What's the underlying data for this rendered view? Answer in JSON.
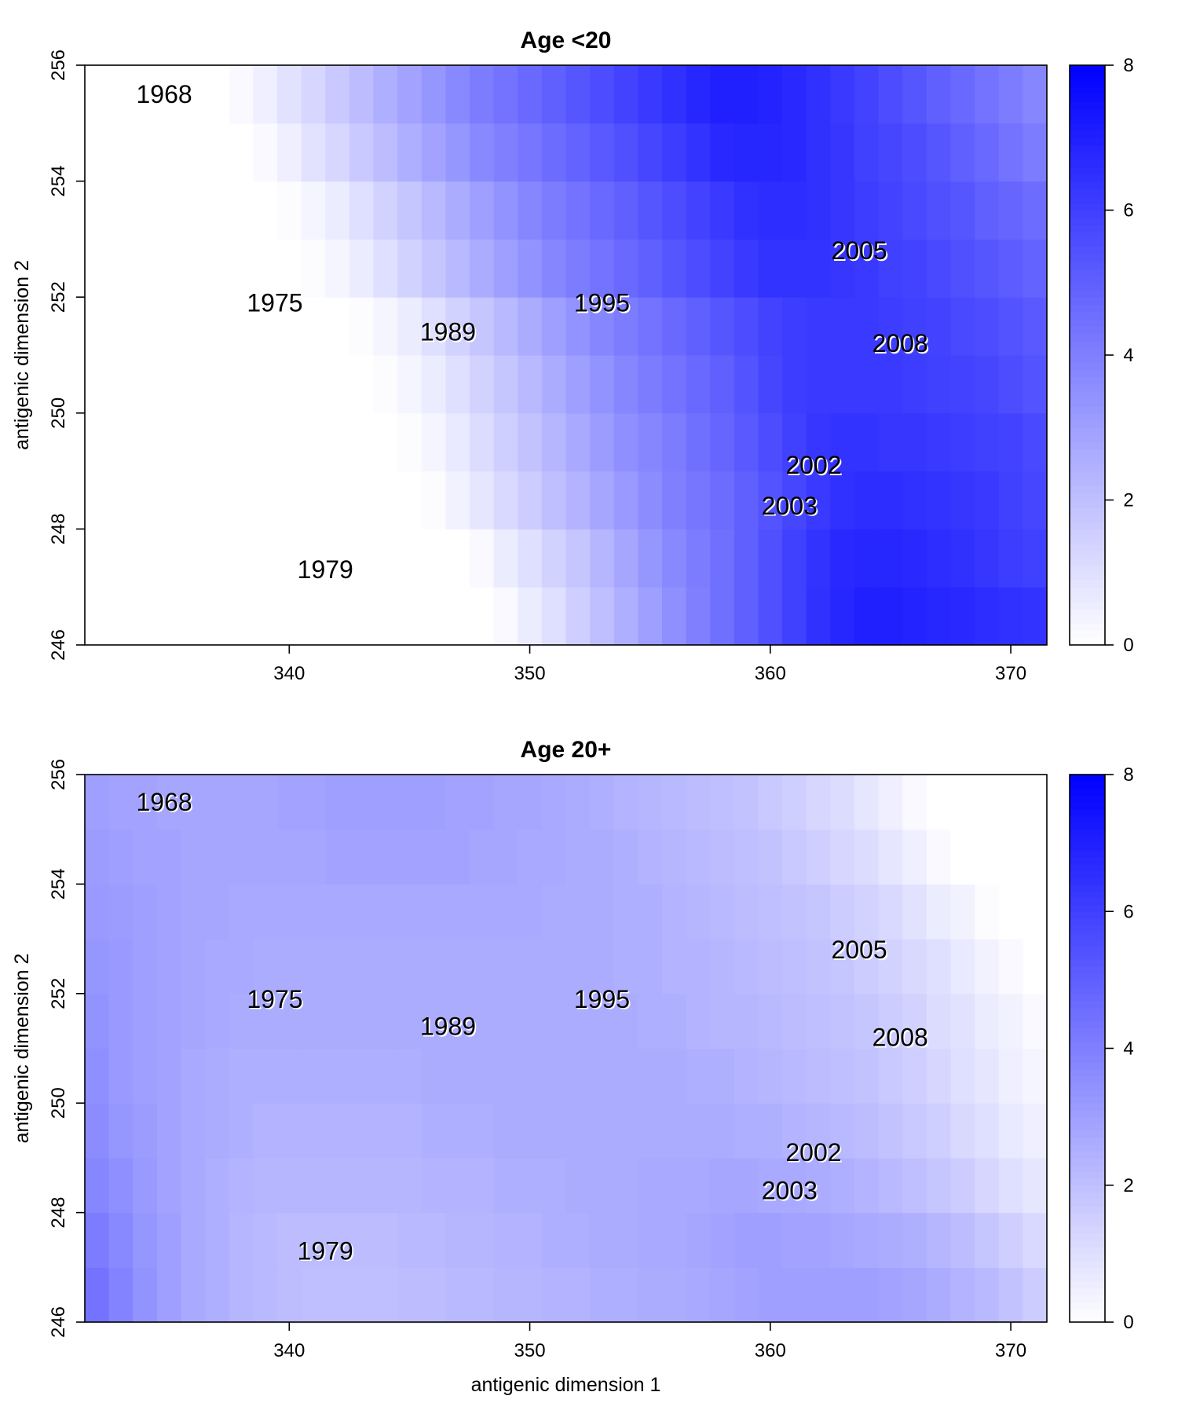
{
  "chart_data": [
    {
      "type": "heatmap",
      "title": "Age <20",
      "xlabel": "",
      "ylabel": "antigenic dimension 2",
      "xlim": [
        331.5,
        371.5
      ],
      "ylim": [
        246,
        256
      ],
      "x_ticks": [
        340,
        350,
        360,
        370
      ],
      "y_ticks": [
        246,
        248,
        250,
        252,
        254,
        256
      ],
      "grid": false,
      "colorbar": {
        "min": 0,
        "max": 8,
        "ticks": [
          0,
          2,
          4,
          6,
          8
        ],
        "low_color": "#ffffff",
        "high_color": "#0000ff"
      },
      "x_centers": [
        332,
        333,
        334,
        335,
        336,
        337,
        338,
        339,
        340,
        341,
        342,
        343,
        344,
        345,
        346,
        347,
        348,
        349,
        350,
        351,
        352,
        353,
        354,
        355,
        356,
        357,
        358,
        359,
        360,
        361,
        362,
        363,
        364,
        365,
        366,
        367,
        368,
        369,
        370,
        371
      ],
      "y_centers": [
        246.5,
        247.5,
        248.5,
        249.5,
        250.5,
        251.5,
        252.5,
        253.5,
        254.5,
        255.5
      ],
      "values": [
        [
          0,
          0,
          0,
          0,
          0,
          0,
          0,
          0,
          0,
          0,
          0,
          0,
          0,
          0,
          0,
          0,
          0,
          0.2,
          0.6,
          1.0,
          1.5,
          2.0,
          2.5,
          3.0,
          3.5,
          4.0,
          4.5,
          5.0,
          5.5,
          6.0,
          6.5,
          6.8,
          7.0,
          7.0,
          6.9,
          6.8,
          6.7,
          6.6,
          6.5,
          6.4
        ],
        [
          0,
          0,
          0,
          0,
          0,
          0,
          0,
          0,
          0,
          0,
          0,
          0,
          0,
          0,
          0,
          0,
          0.2,
          0.6,
          1.0,
          1.4,
          1.8,
          2.3,
          2.8,
          3.3,
          3.7,
          4.1,
          4.5,
          5.0,
          5.5,
          6.0,
          6.4,
          6.7,
          6.8,
          6.8,
          6.7,
          6.6,
          6.5,
          6.3,
          6.1,
          6.0
        ],
        [
          0,
          0,
          0,
          0,
          0,
          0,
          0,
          0,
          0,
          0,
          0,
          0,
          0,
          0,
          0.1,
          0.4,
          0.8,
          1.2,
          1.6,
          2.0,
          2.4,
          2.8,
          3.2,
          3.6,
          4.0,
          4.3,
          4.6,
          5.0,
          5.4,
          5.8,
          6.2,
          6.5,
          6.6,
          6.6,
          6.5,
          6.4,
          6.3,
          6.2,
          6.0,
          5.8
        ],
        [
          0,
          0,
          0,
          0,
          0,
          0,
          0,
          0,
          0,
          0,
          0,
          0,
          0,
          0.1,
          0.3,
          0.7,
          1.1,
          1.5,
          1.9,
          2.3,
          2.7,
          3.1,
          3.5,
          3.8,
          4.1,
          4.5,
          4.8,
          5.2,
          5.6,
          6.0,
          6.3,
          6.4,
          6.4,
          6.3,
          6.3,
          6.2,
          6.1,
          6.0,
          5.9,
          5.7
        ],
        [
          0,
          0,
          0,
          0,
          0,
          0,
          0,
          0,
          0,
          0,
          0,
          0,
          0.1,
          0.3,
          0.6,
          1.0,
          1.4,
          1.8,
          2.2,
          2.6,
          3.0,
          3.4,
          3.8,
          4.1,
          4.4,
          4.7,
          5.0,
          5.4,
          5.8,
          6.1,
          6.2,
          6.2,
          6.2,
          6.2,
          6.1,
          6.0,
          5.9,
          5.8,
          5.6,
          5.4
        ],
        [
          0,
          0,
          0,
          0,
          0,
          0,
          0,
          0,
          0,
          0,
          0,
          0.1,
          0.3,
          0.6,
          1.0,
          1.4,
          1.8,
          2.2,
          2.6,
          3.0,
          3.4,
          3.8,
          4.1,
          4.4,
          4.7,
          5.0,
          5.3,
          5.6,
          5.9,
          6.1,
          6.2,
          6.2,
          6.2,
          6.1,
          6.0,
          5.9,
          5.7,
          5.6,
          5.4,
          5.2
        ],
        [
          0,
          0,
          0,
          0,
          0,
          0,
          0,
          0,
          0,
          0.1,
          0.3,
          0.6,
          1.0,
          1.4,
          1.8,
          2.2,
          2.6,
          3.0,
          3.4,
          3.8,
          4.1,
          4.4,
          4.7,
          5.0,
          5.3,
          5.6,
          5.9,
          6.2,
          6.4,
          6.4,
          6.4,
          6.3,
          6.2,
          6.0,
          5.9,
          5.7,
          5.5,
          5.3,
          5.1,
          4.9
        ],
        [
          0,
          0,
          0,
          0,
          0,
          0,
          0,
          0,
          0.1,
          0.3,
          0.6,
          1.0,
          1.4,
          1.8,
          2.2,
          2.6,
          3.0,
          3.4,
          3.8,
          4.1,
          4.4,
          4.7,
          5.0,
          5.3,
          5.6,
          5.9,
          6.2,
          6.5,
          6.6,
          6.6,
          6.5,
          6.3,
          6.1,
          5.9,
          5.7,
          5.5,
          5.3,
          5.0,
          4.8,
          4.6
        ],
        [
          0,
          0,
          0,
          0,
          0,
          0,
          0,
          0.2,
          0.5,
          0.9,
          1.3,
          1.7,
          2.1,
          2.5,
          2.9,
          3.3,
          3.7,
          4.0,
          4.3,
          4.6,
          4.9,
          5.2,
          5.5,
          5.8,
          6.1,
          6.4,
          6.7,
          6.8,
          6.8,
          6.7,
          6.5,
          6.3,
          6.0,
          5.8,
          5.6,
          5.3,
          5.0,
          4.7,
          4.4,
          4.1
        ],
        [
          0,
          0,
          0,
          0,
          0,
          0,
          0.2,
          0.5,
          0.9,
          1.3,
          1.7,
          2.1,
          2.5,
          2.9,
          3.3,
          3.7,
          4.1,
          4.4,
          4.7,
          5.0,
          5.3,
          5.6,
          5.9,
          6.2,
          6.5,
          6.8,
          7.0,
          7.0,
          6.9,
          6.7,
          6.5,
          6.2,
          5.9,
          5.6,
          5.3,
          5.0,
          4.7,
          4.4,
          4.1,
          3.8
        ]
      ],
      "annotations": [
        {
          "text": "1968",
          "x": 334.8,
          "y": 255.5
        },
        {
          "text": "1975",
          "x": 339.4,
          "y": 251.9
        },
        {
          "text": "1989",
          "x": 346.6,
          "y": 251.4
        },
        {
          "text": "1995",
          "x": 353.0,
          "y": 251.9
        },
        {
          "text": "2005",
          "x": 363.7,
          "y": 252.8
        },
        {
          "text": "2008",
          "x": 365.4,
          "y": 251.2
        },
        {
          "text": "2002",
          "x": 361.8,
          "y": 249.1
        },
        {
          "text": "2003",
          "x": 360.8,
          "y": 248.4
        },
        {
          "text": "1979",
          "x": 341.5,
          "y": 247.3
        }
      ]
    },
    {
      "type": "heatmap",
      "title": "Age 20+",
      "xlabel": "antigenic dimension 1",
      "ylabel": "antigenic dimension 2",
      "xlim": [
        331.5,
        371.5
      ],
      "ylim": [
        246,
        256
      ],
      "x_ticks": [
        340,
        350,
        360,
        370
      ],
      "y_ticks": [
        246,
        248,
        250,
        252,
        254,
        256
      ],
      "grid": false,
      "colorbar": {
        "min": 0,
        "max": 8,
        "ticks": [
          0,
          2,
          4,
          6,
          8
        ],
        "low_color": "#ffffff",
        "high_color": "#0000ff"
      },
      "x_centers": [
        332,
        333,
        334,
        335,
        336,
        337,
        338,
        339,
        340,
        341,
        342,
        343,
        344,
        345,
        346,
        347,
        348,
        349,
        350,
        351,
        352,
        353,
        354,
        355,
        356,
        357,
        358,
        359,
        360,
        361,
        362,
        363,
        364,
        365,
        366,
        367,
        368,
        369,
        370,
        371
      ],
      "y_centers": [
        246.5,
        247.5,
        248.5,
        249.5,
        250.5,
        251.5,
        252.5,
        253.5,
        254.5,
        255.5
      ],
      "values": [
        [
          4.4,
          3.9,
          3.4,
          3.0,
          2.7,
          2.5,
          2.3,
          2.2,
          2.1,
          2.0,
          2.0,
          2.0,
          2.0,
          2.1,
          2.1,
          2.2,
          2.2,
          2.3,
          2.3,
          2.4,
          2.4,
          2.5,
          2.5,
          2.6,
          2.6,
          2.7,
          2.8,
          2.9,
          3.0,
          3.0,
          3.0,
          3.0,
          3.0,
          2.9,
          2.8,
          2.6,
          2.4,
          2.2,
          1.9,
          1.6
        ],
        [
          4.1,
          3.7,
          3.3,
          3.0,
          2.7,
          2.5,
          2.3,
          2.2,
          2.1,
          2.1,
          2.1,
          2.1,
          2.1,
          2.2,
          2.2,
          2.3,
          2.3,
          2.4,
          2.4,
          2.5,
          2.5,
          2.6,
          2.6,
          2.7,
          2.7,
          2.8,
          2.9,
          3.0,
          3.0,
          2.9,
          2.9,
          2.8,
          2.7,
          2.6,
          2.5,
          2.3,
          2.1,
          1.8,
          1.5,
          1.2
        ],
        [
          3.8,
          3.5,
          3.2,
          2.9,
          2.7,
          2.5,
          2.4,
          2.3,
          2.3,
          2.3,
          2.3,
          2.3,
          2.3,
          2.3,
          2.4,
          2.4,
          2.4,
          2.5,
          2.5,
          2.5,
          2.6,
          2.6,
          2.6,
          2.7,
          2.7,
          2.7,
          2.8,
          2.8,
          2.7,
          2.7,
          2.6,
          2.5,
          2.4,
          2.2,
          2.0,
          1.8,
          1.6,
          1.3,
          1.0,
          0.8
        ],
        [
          3.6,
          3.3,
          3.1,
          2.9,
          2.7,
          2.6,
          2.5,
          2.4,
          2.4,
          2.4,
          2.4,
          2.4,
          2.4,
          2.4,
          2.5,
          2.5,
          2.5,
          2.6,
          2.6,
          2.6,
          2.6,
          2.6,
          2.6,
          2.6,
          2.6,
          2.6,
          2.6,
          2.5,
          2.5,
          2.4,
          2.3,
          2.2,
          2.1,
          1.9,
          1.7,
          1.5,
          1.2,
          1.0,
          0.7,
          0.5
        ],
        [
          3.5,
          3.2,
          3.0,
          2.9,
          2.7,
          2.6,
          2.5,
          2.5,
          2.5,
          2.5,
          2.5,
          2.5,
          2.5,
          2.5,
          2.6,
          2.6,
          2.6,
          2.6,
          2.6,
          2.6,
          2.6,
          2.6,
          2.6,
          2.6,
          2.6,
          2.5,
          2.5,
          2.4,
          2.3,
          2.2,
          2.1,
          2.0,
          1.9,
          1.7,
          1.5,
          1.3,
          1.0,
          0.8,
          0.5,
          0.3
        ],
        [
          3.4,
          3.2,
          3.0,
          2.9,
          2.8,
          2.7,
          2.6,
          2.6,
          2.6,
          2.6,
          2.6,
          2.6,
          2.6,
          2.6,
          2.6,
          2.6,
          2.6,
          2.6,
          2.6,
          2.6,
          2.6,
          2.6,
          2.6,
          2.5,
          2.5,
          2.4,
          2.3,
          2.3,
          2.2,
          2.1,
          2.0,
          1.9,
          1.8,
          1.6,
          1.4,
          1.1,
          0.9,
          0.6,
          0.4,
          0.2
        ],
        [
          3.3,
          3.2,
          3.0,
          2.9,
          2.8,
          2.7,
          2.7,
          2.6,
          2.6,
          2.6,
          2.6,
          2.6,
          2.6,
          2.6,
          2.6,
          2.6,
          2.6,
          2.6,
          2.6,
          2.6,
          2.6,
          2.6,
          2.5,
          2.5,
          2.4,
          2.4,
          2.3,
          2.2,
          2.1,
          2.0,
          1.9,
          1.8,
          1.6,
          1.4,
          1.2,
          1.0,
          0.7,
          0.4,
          0.2,
          0
        ],
        [
          3.2,
          3.1,
          3.0,
          2.9,
          2.8,
          2.8,
          2.7,
          2.7,
          2.7,
          2.7,
          2.7,
          2.7,
          2.7,
          2.7,
          2.7,
          2.7,
          2.7,
          2.7,
          2.7,
          2.6,
          2.6,
          2.6,
          2.5,
          2.5,
          2.4,
          2.3,
          2.2,
          2.1,
          2.0,
          1.9,
          1.8,
          1.6,
          1.4,
          1.2,
          0.9,
          0.6,
          0.4,
          0.1,
          0,
          0
        ],
        [
          3.1,
          3.0,
          2.9,
          2.9,
          2.8,
          2.8,
          2.8,
          2.8,
          2.8,
          2.8,
          2.9,
          2.9,
          2.9,
          2.9,
          2.9,
          2.9,
          2.8,
          2.8,
          2.7,
          2.7,
          2.6,
          2.6,
          2.5,
          2.4,
          2.3,
          2.2,
          2.1,
          2.0,
          1.9,
          1.7,
          1.5,
          1.3,
          1.1,
          0.8,
          0.5,
          0.2,
          0,
          0,
          0,
          0
        ],
        [
          3.0,
          2.9,
          2.9,
          2.8,
          2.8,
          2.8,
          2.8,
          2.8,
          2.9,
          2.9,
          3.0,
          3.0,
          3.0,
          3.0,
          3.0,
          2.9,
          2.9,
          2.8,
          2.8,
          2.7,
          2.6,
          2.5,
          2.4,
          2.3,
          2.2,
          2.1,
          2.0,
          1.9,
          1.7,
          1.5,
          1.3,
          1.1,
          0.8,
          0.5,
          0.2,
          0,
          0,
          0,
          0,
          0
        ]
      ],
      "annotations": [
        {
          "text": "1968",
          "x": 334.8,
          "y": 255.5
        },
        {
          "text": "1975",
          "x": 339.4,
          "y": 251.9
        },
        {
          "text": "1989",
          "x": 346.6,
          "y": 251.4
        },
        {
          "text": "1995",
          "x": 353.0,
          "y": 251.9
        },
        {
          "text": "2005",
          "x": 363.7,
          "y": 252.8
        },
        {
          "text": "2008",
          "x": 365.4,
          "y": 251.2
        },
        {
          "text": "2002",
          "x": 361.8,
          "y": 249.1
        },
        {
          "text": "2003",
          "x": 360.8,
          "y": 248.4
        },
        {
          "text": "1979",
          "x": 341.5,
          "y": 247.3
        }
      ]
    }
  ]
}
